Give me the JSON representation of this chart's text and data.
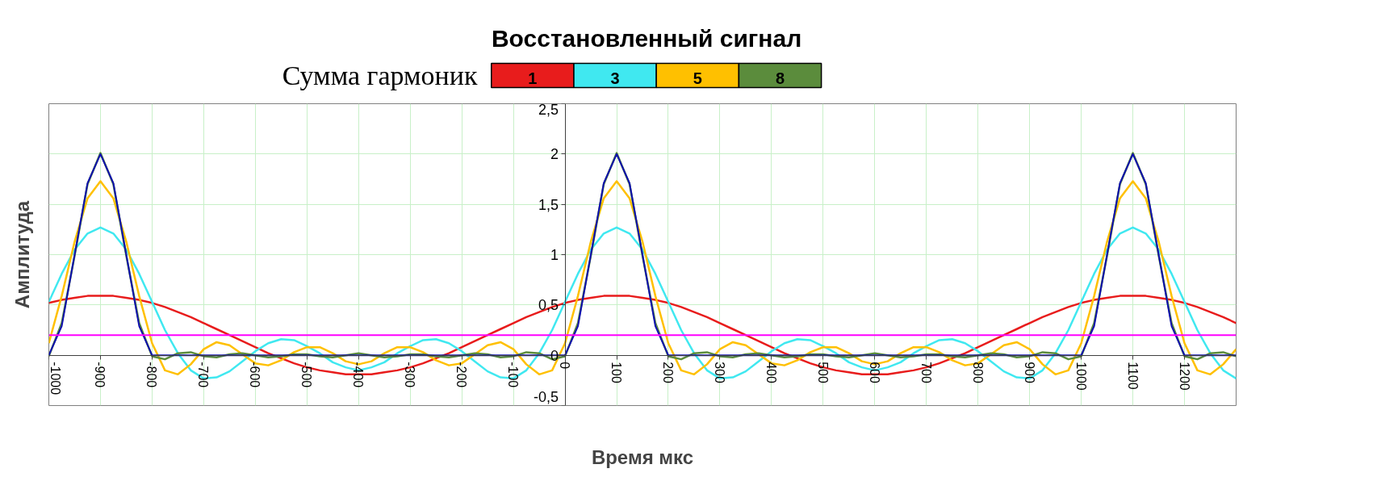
{
  "chart_data": {
    "type": "line",
    "title": "Восстановленный сигнал",
    "legend_title": "Сумма гармоник",
    "xlabel": "Время мкс",
    "ylabel": "Амплитуда",
    "xlim": [
      -1000,
      1300
    ],
    "xticks": [
      -1000,
      -900,
      -800,
      -700,
      -600,
      -500,
      -400,
      -300,
      -200,
      -100,
      0,
      100,
      200,
      300,
      400,
      500,
      600,
      700,
      800,
      900,
      1000,
      1100,
      1200
    ],
    "ylim": [
      -0.5,
      2.5
    ],
    "yticks": [
      {
        "value": -0.5,
        "label": "-0,5"
      },
      0,
      {
        "value": 0.5,
        "label": "0,5"
      },
      1,
      {
        "value": 1.5,
        "label": "1,5"
      },
      2,
      {
        "value": 2.5,
        "label": "2,5"
      }
    ],
    "grid": true,
    "legend": "top",
    "ref_lines": [
      {
        "axis": "y",
        "value": 0.2,
        "color": "#ff00ff"
      }
    ],
    "x": [
      -1000,
      -975,
      -950,
      -925,
      -900,
      -875,
      -850,
      -825,
      -800,
      -775,
      -750,
      -725,
      -700,
      -675,
      -650,
      -625,
      -600,
      -575,
      -550,
      -525,
      -500,
      -475,
      -450,
      -425,
      -400,
      -375,
      -350,
      -325,
      -300,
      -275,
      -250,
      -225,
      -200,
      -175,
      -150,
      -125,
      -100,
      -75,
      -50,
      -25,
      0,
      25,
      50,
      75,
      100,
      125,
      150,
      175,
      200,
      225,
      250,
      275,
      300,
      325,
      350,
      375,
      400,
      425,
      450,
      475,
      500,
      525,
      550,
      575,
      600,
      625,
      650,
      675,
      700,
      725,
      750,
      775,
      800,
      825,
      850,
      875,
      900,
      925,
      950,
      975,
      1000,
      1025,
      1050,
      1075,
      1100,
      1125,
      1150,
      1175,
      1200,
      1225,
      1250,
      1275,
      1300
    ],
    "series": [
      {
        "name": "1",
        "color": "#e81c1c",
        "values": [
          0.52,
          0.55,
          0.57,
          0.59,
          0.59,
          0.59,
          0.57,
          0.55,
          0.52,
          0.48,
          0.43,
          0.38,
          0.32,
          0.26,
          0.2,
          0.14,
          0.08,
          0.02,
          -0.03,
          -0.08,
          -0.12,
          -0.15,
          -0.17,
          -0.19,
          -0.19,
          -0.19,
          -0.17,
          -0.15,
          -0.12,
          -0.08,
          -0.03,
          0.02,
          0.08,
          0.14,
          0.2,
          0.26,
          0.32,
          0.38,
          0.43,
          0.48,
          0.52,
          0.55,
          0.57,
          0.59,
          0.59,
          0.59,
          0.57,
          0.55,
          0.52,
          0.48,
          0.43,
          0.38,
          0.32,
          0.26,
          0.2,
          0.14,
          0.08,
          0.02,
          -0.03,
          -0.08,
          -0.12,
          -0.15,
          -0.17,
          -0.19,
          -0.19,
          -0.19,
          -0.17,
          -0.15,
          -0.12,
          -0.08,
          -0.03,
          0.02,
          0.08,
          0.14,
          0.2,
          0.26,
          0.32,
          0.38,
          0.43,
          0.48,
          0.52,
          0.55,
          0.57,
          0.59,
          0.59,
          0.59,
          0.57,
          0.55,
          0.52,
          0.48,
          0.43,
          0.38,
          0.32
        ]
      },
      {
        "name": "3",
        "color": "#40e8f0",
        "values": [
          0.53,
          0.81,
          1.05,
          1.21,
          1.27,
          1.21,
          1.05,
          0.81,
          0.53,
          0.25,
          0.02,
          -0.15,
          -0.23,
          -0.22,
          -0.16,
          -0.06,
          0.04,
          0.12,
          0.16,
          0.15,
          0.09,
          0.02,
          -0.07,
          -0.12,
          -0.15,
          -0.12,
          -0.07,
          0.02,
          0.09,
          0.15,
          0.16,
          0.12,
          0.04,
          -0.06,
          -0.16,
          -0.22,
          -0.23,
          -0.15,
          0.02,
          0.25,
          0.53,
          0.81,
          1.05,
          1.21,
          1.27,
          1.21,
          1.05,
          0.81,
          0.53,
          0.25,
          0.02,
          -0.15,
          -0.23,
          -0.22,
          -0.16,
          -0.06,
          0.04,
          0.12,
          0.16,
          0.15,
          0.09,
          0.02,
          -0.07,
          -0.12,
          -0.15,
          -0.12,
          -0.07,
          0.02,
          0.09,
          0.15,
          0.16,
          0.12,
          0.04,
          -0.06,
          -0.16,
          -0.22,
          -0.23,
          -0.15,
          0.02,
          0.25,
          0.53,
          0.81,
          1.05,
          1.21,
          1.27,
          1.21,
          1.05,
          0.81,
          0.53,
          0.25,
          0.02,
          -0.15,
          -0.23
        ]
      },
      {
        "name": "5",
        "color": "#ffc000",
        "values": [
          0.12,
          0.59,
          1.13,
          1.56,
          1.73,
          1.56,
          1.13,
          0.59,
          0.12,
          -0.15,
          -0.19,
          -0.09,
          0.06,
          0.13,
          0.1,
          0.01,
          -0.08,
          -0.1,
          -0.05,
          0.03,
          0.08,
          0.08,
          0.02,
          -0.06,
          -0.09,
          -0.06,
          0.02,
          0.08,
          0.08,
          0.03,
          -0.05,
          -0.1,
          -0.08,
          0.01,
          0.1,
          0.13,
          0.06,
          -0.09,
          -0.19,
          -0.15,
          0.12,
          0.59,
          1.13,
          1.56,
          1.73,
          1.56,
          1.13,
          0.59,
          0.12,
          -0.15,
          -0.19,
          -0.09,
          0.06,
          0.13,
          0.1,
          0.01,
          -0.08,
          -0.1,
          -0.05,
          0.03,
          0.08,
          0.08,
          0.02,
          -0.06,
          -0.09,
          -0.06,
          0.02,
          0.08,
          0.08,
          0.03,
          -0.05,
          -0.1,
          -0.08,
          0.01,
          0.1,
          0.13,
          0.06,
          -0.09,
          -0.19,
          -0.15,
          0.12,
          0.59,
          1.13,
          1.56,
          1.73,
          1.56,
          1.13,
          0.59,
          0.12,
          -0.15,
          -0.19,
          -0.09,
          0.06
        ]
      },
      {
        "name": "8",
        "color": "#5b8c3c",
        "values": [
          -0.01,
          0.32,
          0.99,
          1.7,
          2.01,
          1.7,
          0.99,
          0.32,
          -0.01,
          -0.04,
          0.02,
          0.03,
          -0.01,
          -0.02,
          0.01,
          0.02,
          0,
          -0.02,
          -0.01,
          0.01,
          0.01,
          -0.01,
          -0.02,
          0,
          0.02,
          0,
          -0.02,
          -0.01,
          0.01,
          0.01,
          -0.01,
          -0.02,
          0,
          0.02,
          0.01,
          -0.02,
          -0.01,
          0.03,
          0.02,
          -0.04,
          -0.01,
          0.32,
          0.99,
          1.7,
          2.01,
          1.7,
          0.99,
          0.32,
          -0.01,
          -0.04,
          0.02,
          0.03,
          -0.01,
          -0.02,
          0.01,
          0.02,
          0,
          -0.02,
          -0.01,
          0.01,
          0.01,
          -0.01,
          -0.02,
          0,
          0.02,
          0,
          -0.02,
          -0.01,
          0.01,
          0.01,
          -0.01,
          -0.02,
          0,
          0.02,
          0.01,
          -0.02,
          -0.01,
          0.03,
          0.02,
          -0.04,
          -0.01,
          0.32,
          0.99,
          1.7,
          2.01,
          1.7,
          0.99,
          0.32,
          -0.01,
          -0.04,
          0.02,
          0.03,
          -0.01
        ]
      },
      {
        "color": "#1010b0",
        "values": [
          0,
          0.29,
          1,
          1.71,
          2,
          1.71,
          1,
          0.29,
          0,
          0,
          0,
          0,
          0,
          0,
          0,
          0,
          0,
          0,
          0,
          0,
          0,
          0,
          0,
          0,
          0,
          0,
          0,
          0,
          0,
          0,
          0,
          0,
          0,
          0,
          0,
          0,
          0,
          0,
          0,
          0,
          0,
          0.29,
          1,
          1.71,
          2,
          1.71,
          1,
          0.29,
          0,
          0,
          0,
          0,
          0,
          0,
          0,
          0,
          0,
          0,
          0,
          0,
          0,
          0,
          0,
          0,
          0,
          0,
          0,
          0,
          0,
          0,
          0,
          0,
          0,
          0,
          0,
          0,
          0,
          0,
          0,
          0,
          0,
          0.29,
          1,
          1.71,
          2,
          1.71,
          1,
          0.29,
          0,
          0,
          0,
          0,
          0
        ]
      }
    ]
  }
}
